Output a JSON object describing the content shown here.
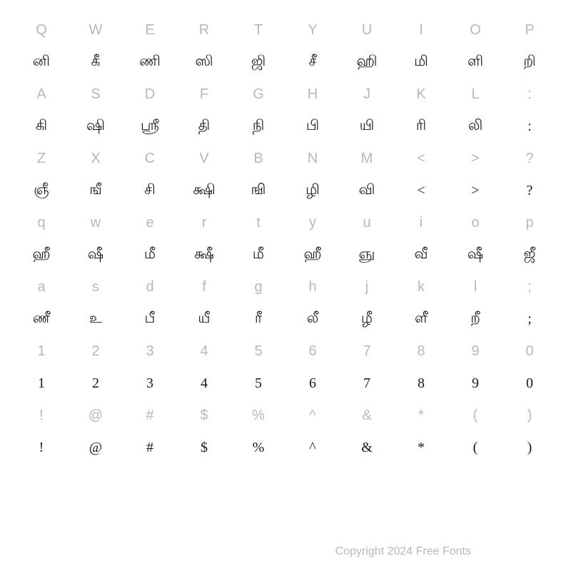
{
  "rows": [
    {
      "type": "key",
      "cells": [
        "Q",
        "W",
        "E",
        "R",
        "T",
        "Y",
        "U",
        "I",
        "O",
        "P"
      ]
    },
    {
      "type": "glyph",
      "cells": [
        "னி",
        "கீ",
        "ணி",
        "ஸி",
        "ஜி",
        "சீ",
        "ஹி",
        "மி",
        "ளி",
        "றி"
      ]
    },
    {
      "type": "key",
      "cells": [
        "A",
        "S",
        "D",
        "F",
        "G",
        "H",
        "J",
        "K",
        "L",
        ":"
      ]
    },
    {
      "type": "glyph",
      "cells": [
        "கி",
        "ஷி",
        "ஶ்ரீ",
        "தி",
        "நி",
        "பி",
        "யி",
        "ரி",
        "லி",
        ":"
      ]
    },
    {
      "type": "key",
      "cells": [
        "Z",
        "X",
        "C",
        "V",
        "B",
        "N",
        "M",
        "<",
        ">",
        "?"
      ]
    },
    {
      "type": "glyph",
      "cells": [
        "ஞீ",
        "ஙீ",
        "சி",
        "க்ஷி",
        "ஙி",
        "ழி",
        "வி",
        "<",
        ">",
        "?"
      ]
    },
    {
      "type": "key",
      "cells": [
        "q",
        "w",
        "e",
        "r",
        "t",
        "y",
        "u",
        "i",
        "o",
        "p"
      ]
    },
    {
      "type": "glyph",
      "cells": [
        "ஹீ",
        "ஷீ",
        "மீ",
        "க்ஷீ",
        "மீ",
        "ஹீ",
        "ஞு",
        "வீ",
        "ஷீ",
        "ஜீ"
      ]
    },
    {
      "type": "key",
      "cells": [
        "a",
        "s",
        "d",
        "f",
        "g",
        "h",
        "j",
        "k",
        "l",
        ";"
      ]
    },
    {
      "type": "glyph",
      "cells": [
        "ணீ",
        "உ",
        "பீ",
        "யீ",
        "ரீ",
        "லீ",
        "ழீ",
        "ளீ",
        "றீ",
        ";"
      ]
    },
    {
      "type": "key",
      "cells": [
        "1",
        "2",
        "3",
        "4",
        "5",
        "6",
        "7",
        "8",
        "9",
        "0"
      ]
    },
    {
      "type": "glyph",
      "cells": [
        "1",
        "2",
        "3",
        "4",
        "5",
        "6",
        "7",
        "8",
        "9",
        "0"
      ]
    },
    {
      "type": "key",
      "cells": [
        "!",
        "@",
        "#",
        "$",
        "%",
        "^",
        "&",
        "*",
        "(",
        ")"
      ]
    },
    {
      "type": "glyph",
      "cells": [
        "!",
        "@",
        "#",
        "$",
        "%",
        "^",
        "&",
        "*",
        "(",
        ")"
      ]
    }
  ],
  "copyright": "Copyright 2024 Free Fonts",
  "colors": {
    "key_label": "#b8b8b8",
    "glyph": "#1a1a1a",
    "background": "#ffffff"
  },
  "grid": {
    "columns": 10,
    "rows": 16,
    "cell_fontsize": 20
  }
}
